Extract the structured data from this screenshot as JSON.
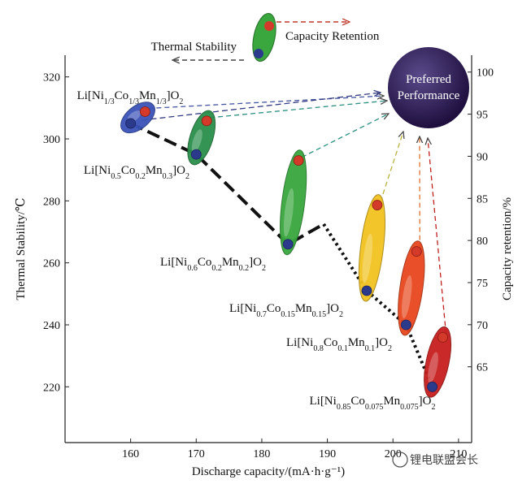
{
  "chart_data": {
    "type": "scatter",
    "xlabel": "Discharge capacity/(mA·h·g⁻¹)",
    "ylabel_left": "Thermal Stability/℃",
    "ylabel_right": "Capacity retention/%",
    "xlim": [
      150,
      212
    ],
    "ylim_left": [
      202,
      327
    ],
    "ylim_right": [
      56,
      102
    ],
    "x_ticks": [
      160,
      170,
      180,
      190,
      200,
      210
    ],
    "y_left_ticks": [
      220,
      240,
      260,
      280,
      300,
      320
    ],
    "y_right_ticks": [
      65,
      70,
      75,
      80,
      85,
      90,
      95,
      100
    ],
    "materials": [
      {
        "name_parts": [
          [
            "Li[Ni",
            ""
          ],
          [
            "1/3",
            "sub"
          ],
          [
            "Co",
            ""
          ],
          [
            "1/3",
            "sub"
          ],
          [
            "Mn",
            ""
          ],
          [
            "1/3",
            "sub"
          ],
          [
            "]O",
            ""
          ],
          [
            "2",
            "sub"
          ]
        ],
        "x": 160,
        "thermal": 305,
        "retention": 95.3,
        "color": "#3a53b8"
      },
      {
        "name_parts": [
          [
            "Li[Ni",
            ""
          ],
          [
            "0.5",
            "sub"
          ],
          [
            "Co",
            ""
          ],
          [
            "0.2",
            "sub"
          ],
          [
            "Mn",
            ""
          ],
          [
            "0.3",
            "sub"
          ],
          [
            "]O",
            ""
          ],
          [
            "2",
            "sub"
          ]
        ],
        "x": 170,
        "thermal": 295,
        "retention": 94.2,
        "color": "#2a8f4a"
      },
      {
        "name_parts": [
          [
            "Li[Ni",
            ""
          ],
          [
            "0.6",
            "sub"
          ],
          [
            "Co",
            ""
          ],
          [
            "0.2",
            "sub"
          ],
          [
            "Mn",
            ""
          ],
          [
            "0.2",
            "sub"
          ],
          [
            "]O",
            ""
          ],
          [
            "2",
            "sub"
          ]
        ],
        "x": 184,
        "thermal": 266,
        "retention": 89.5,
        "color": "#38a63e"
      },
      {
        "name_parts": [
          [
            "Li[Ni",
            ""
          ],
          [
            "0.7",
            "sub"
          ],
          [
            "Co",
            ""
          ],
          [
            "0.15",
            "sub"
          ],
          [
            "Mn",
            ""
          ],
          [
            "0.15",
            "sub"
          ],
          [
            "]O",
            ""
          ],
          [
            "2",
            "sub"
          ]
        ],
        "x": 196,
        "thermal": 251,
        "retention": 84.2,
        "color": "#f2c21f"
      },
      {
        "name_parts": [
          [
            "Li[Ni",
            ""
          ],
          [
            "0.8",
            "sub"
          ],
          [
            "Co",
            ""
          ],
          [
            "0.1",
            "sub"
          ],
          [
            "Mn",
            ""
          ],
          [
            "0.1",
            "sub"
          ],
          [
            "]O",
            ""
          ],
          [
            "2",
            "sub"
          ]
        ],
        "x": 202,
        "thermal": 240,
        "retention": 78.7,
        "color": "#e8471e"
      },
      {
        "name_parts": [
          [
            "Li[Ni",
            ""
          ],
          [
            "0.85",
            "sub"
          ],
          [
            "Co",
            ""
          ],
          [
            "0.075",
            "sub"
          ],
          [
            "Mn",
            ""
          ],
          [
            "0.075",
            "sub"
          ],
          [
            "]O",
            ""
          ],
          [
            "2",
            "sub"
          ]
        ],
        "x": 206,
        "thermal": 220,
        "retention": 68.5,
        "color": "#c81e1e"
      }
    ],
    "preferred": {
      "line1": "Preferred",
      "line2": "Performance",
      "color": "#2e1a5e"
    },
    "legend": {
      "thermal": "Thermal Stability",
      "retention": "Capacity Retention"
    }
  },
  "watermark": "锂电联盟会长"
}
